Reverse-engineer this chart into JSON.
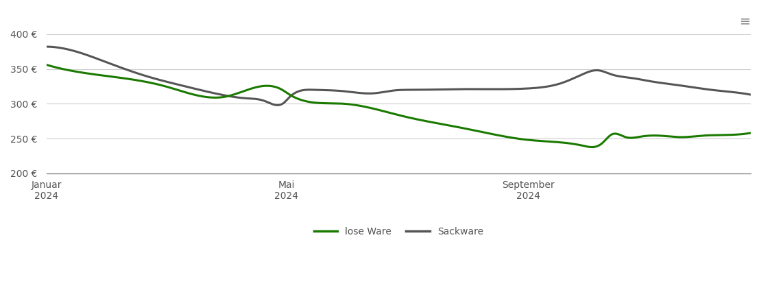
{
  "background_color": "#ffffff",
  "grid_color": "#cccccc",
  "ylim": [
    200,
    415
  ],
  "yticks": [
    200,
    250,
    300,
    350,
    400
  ],
  "lose_ware_color": "#1a7a00",
  "sackware_color": "#555555",
  "line_width": 2.2,
  "legend_labels": [
    "lose Ware",
    "Sackware"
  ],
  "lose_ware_x": [
    0,
    30,
    60,
    90,
    120,
    121,
    150,
    180,
    210,
    243,
    270,
    280,
    285,
    292,
    300,
    310,
    320,
    330,
    340,
    355
  ],
  "lose_ware_y": [
    356,
    340,
    325,
    310,
    318,
    316,
    300,
    282,
    265,
    248,
    240,
    243,
    256,
    252,
    253,
    254,
    252,
    254,
    255,
    258
  ],
  "sackware_x": [
    0,
    15,
    30,
    50,
    70,
    90,
    100,
    110,
    120,
    122,
    135,
    150,
    165,
    175,
    185,
    210,
    243,
    260,
    270,
    278,
    285,
    295,
    305,
    315,
    325,
    335,
    345,
    355
  ],
  "sackware_y": [
    382,
    375,
    360,
    340,
    325,
    312,
    308,
    304,
    302,
    308,
    320,
    318,
    315,
    319,
    320,
    321,
    322,
    330,
    342,
    348,
    342,
    337,
    332,
    328,
    324,
    320,
    317,
    313
  ],
  "x_tick_days": [
    0,
    121,
    243
  ],
  "x_tick_labels": [
    "Januar\n2024",
    "Mai\n2024",
    "September\n2024"
  ],
  "total_days": 355
}
